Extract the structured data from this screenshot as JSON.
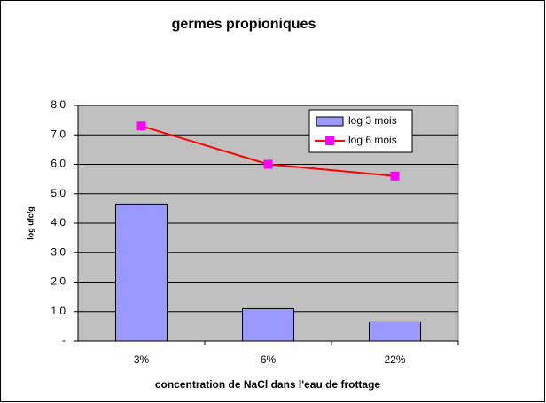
{
  "chart_data": {
    "type": "bar",
    "title": "germes propioniques",
    "x_label": "concentration de NaCl dans l'eau de frottage",
    "y_label": "log ufc/g",
    "categories": [
      "3%",
      "6%",
      "22%"
    ],
    "series": [
      {
        "name": "log 3 mois",
        "type": "bar",
        "color": "#9999ff",
        "values": [
          4.65,
          1.1,
          0.65
        ]
      },
      {
        "name": "log 6 mois",
        "type": "line",
        "color": "#ff0000",
        "marker_color": "#ff00ff",
        "values": [
          7.3,
          6.0,
          5.6
        ]
      }
    ],
    "ylim": [
      0,
      8
    ],
    "yticks": [
      {
        "value": 0,
        "label": "-"
      },
      {
        "value": 1,
        "label": "1.0"
      },
      {
        "value": 2,
        "label": "2.0"
      },
      {
        "value": 3,
        "label": "3.0"
      },
      {
        "value": 4,
        "label": "4.0"
      },
      {
        "value": 5,
        "label": "5.0"
      },
      {
        "value": 6,
        "label": "6.0"
      },
      {
        "value": 7,
        "label": "7.0"
      },
      {
        "value": 8,
        "label": "8.0"
      }
    ],
    "grid": true,
    "plot_background": "#c0c0c0",
    "legend": "upper right"
  }
}
